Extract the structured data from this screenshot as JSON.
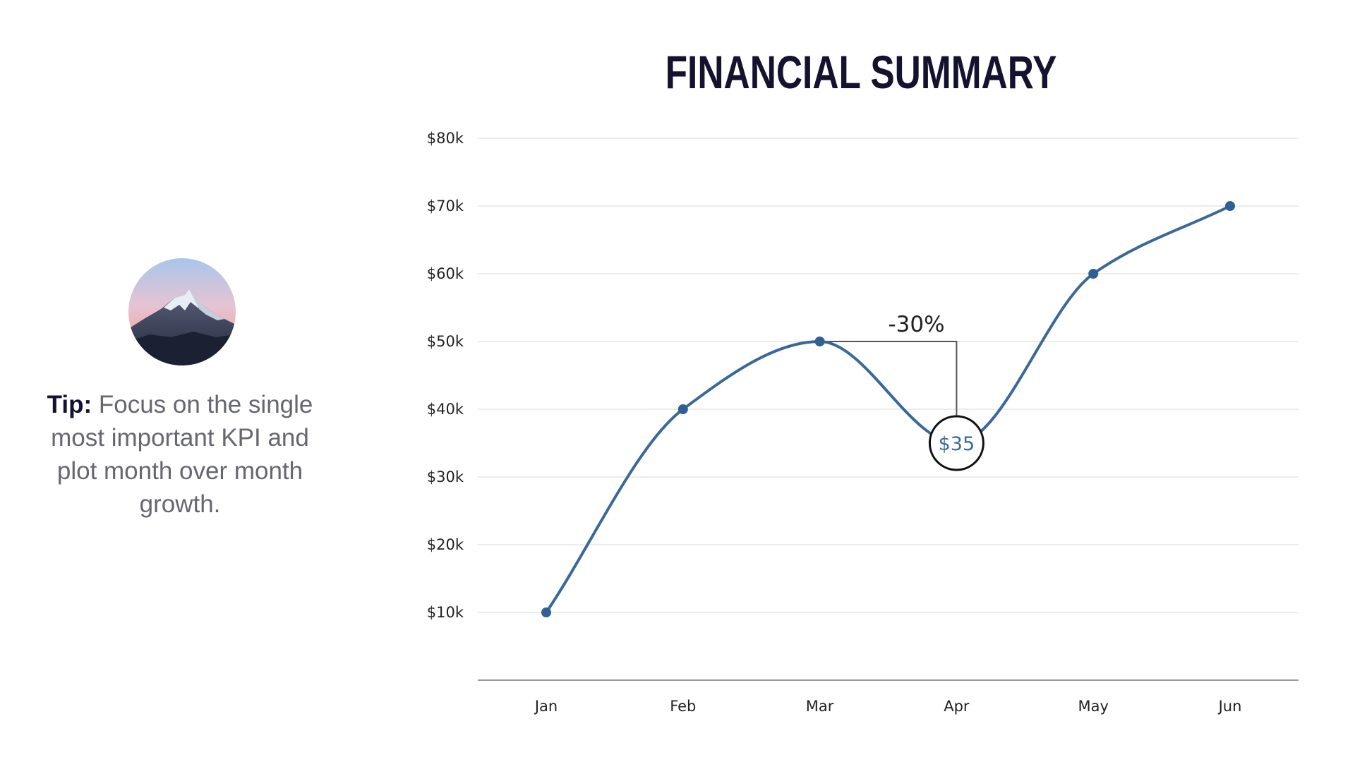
{
  "page": {
    "title": "FINANCIAL SUMMARY",
    "tip_label": "Tip:",
    "tip_text": " Focus on the single most important KPI and plot month over month growth."
  },
  "avatar": {
    "icon": "mountain-peak-photo"
  },
  "colors": {
    "line": "#3a6898",
    "point": "#2f5f93",
    "grid": "#e6e6e6",
    "axis": "#9a9a9a",
    "annotation": "#555555",
    "callout_border": "#111111",
    "callout_text": "#3a6898"
  },
  "chart_data": {
    "type": "line",
    "categories": [
      "Jan",
      "Feb",
      "Mar",
      "Apr",
      "May",
      "Jun"
    ],
    "values": [
      10,
      40,
      50,
      35,
      60,
      70
    ],
    "y_ticks": [
      {
        "value": 10,
        "label": "$10k"
      },
      {
        "value": 20,
        "label": "$20k"
      },
      {
        "value": 30,
        "label": "$30k"
      },
      {
        "value": 40,
        "label": "$40k"
      },
      {
        "value": 50,
        "label": "$50k"
      },
      {
        "value": 60,
        "label": "$60k"
      },
      {
        "value": 70,
        "label": "$70k"
      },
      {
        "value": 80,
        "label": "$80k"
      }
    ],
    "ylim": [
      0,
      80
    ],
    "grid": true,
    "smooth": true,
    "annotation": {
      "text": "-30%",
      "from_category": "Mar",
      "to_category": "Apr",
      "from_value": 50
    },
    "callout": {
      "category": "Apr",
      "value": 35,
      "label": "$35"
    }
  }
}
